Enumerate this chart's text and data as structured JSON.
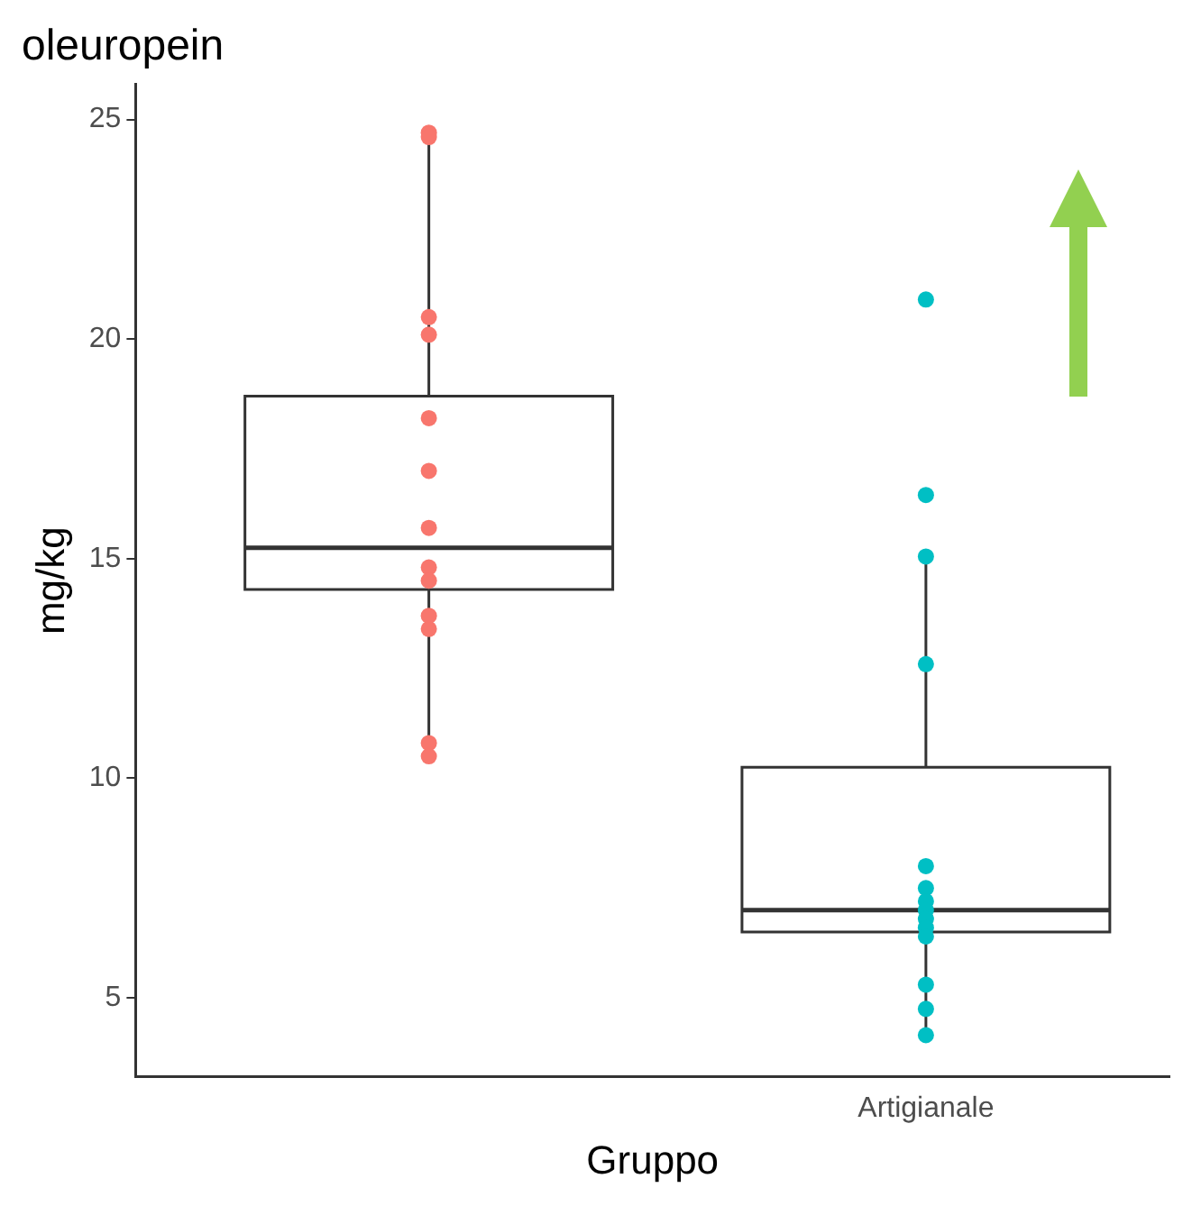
{
  "chart_data": {
    "type": "box",
    "title": "oleuropein",
    "xlabel": "Gruppo",
    "ylabel": "mg/kg",
    "categories": [
      null,
      "Artigianale"
    ],
    "boxes": [
      {
        "low": 10.5,
        "q1": 14.3,
        "median": 15.25,
        "q3": 18.7,
        "high": 24.7
      },
      {
        "low": 4.15,
        "q1": 6.5,
        "median": 7.0,
        "q3": 10.25,
        "high": 15.05
      }
    ],
    "series": [
      {
        "type": "scatter",
        "color": "#f8766d",
        "x": [
          null,
          null,
          null,
          null,
          null,
          null,
          null,
          null,
          null,
          null,
          null,
          null,
          null
        ],
        "values": [
          24.7,
          24.6,
          20.5,
          20.1,
          18.2,
          17.0,
          15.7,
          14.8,
          14.5,
          13.7,
          13.4,
          10.8,
          10.5
        ]
      },
      {
        "type": "scatter",
        "color": "#00bfc4",
        "x": [
          "Artigianale",
          "Artigianale",
          "Artigianale",
          "Artigianale",
          "Artigianale",
          "Artigianale",
          "Artigianale",
          "Artigianale",
          "Artigianale",
          "Artigianale",
          "Artigianale",
          "Artigianale",
          "Artigianale",
          "Artigianale"
        ],
        "values": [
          20.9,
          16.45,
          15.05,
          12.6,
          8.0,
          7.5,
          7.2,
          7.0,
          6.8,
          6.6,
          6.4,
          5.3,
          4.75,
          4.15
        ]
      }
    ],
    "ylim": [
      3.2,
      25.8
    ],
    "yticks": [
      5,
      10,
      15,
      20,
      25
    ],
    "grid": false,
    "legend": false,
    "marker": "circle"
  }
}
